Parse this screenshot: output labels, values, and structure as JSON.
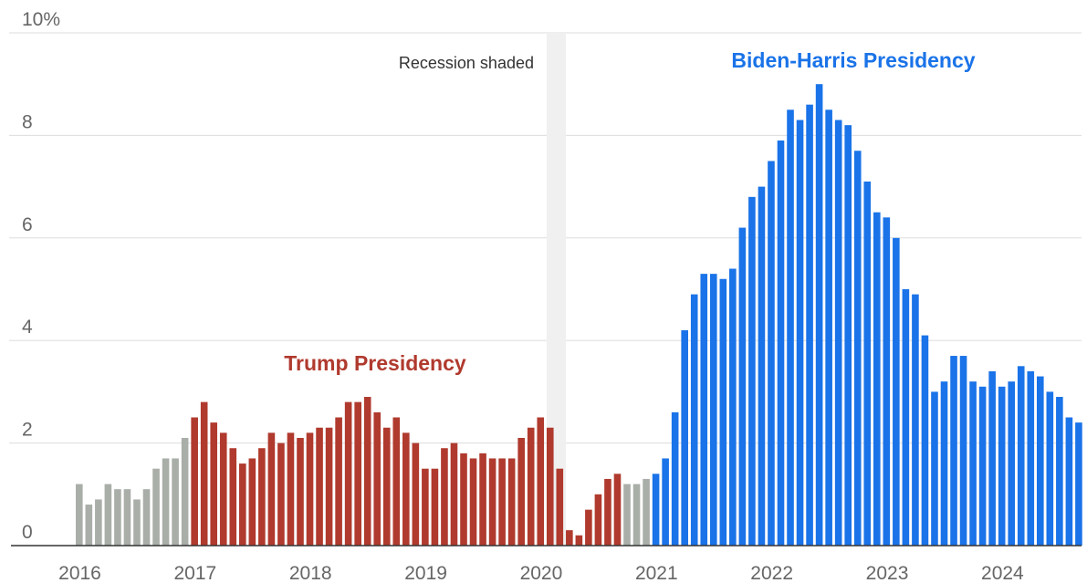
{
  "chart_data": {
    "type": "bar",
    "xlabel": "",
    "ylabel": "",
    "ylim": [
      0,
      10
    ],
    "grid": true,
    "y_ticks": [
      "10%",
      "8",
      "6",
      "4",
      "2",
      "0"
    ],
    "x_ticks": [
      "2016",
      "2017",
      "2018",
      "2019",
      "2020",
      "2021",
      "2022",
      "2023",
      "2024"
    ],
    "x_start": "2016-01",
    "x_end": "2024-09",
    "recession": {
      "label": "Recession shaded",
      "start": "2020-03",
      "end": "2020-04",
      "color": "#f0f0f0"
    },
    "annotations": [
      {
        "text": "Trump Presidency",
        "color": "#b03a2e"
      },
      {
        "text": "Biden-Harris Presidency",
        "color": "#1a73e8"
      }
    ],
    "series": [
      {
        "color": "#a9aea8",
        "start": "2016-01",
        "values": [
          1.2,
          0.8,
          0.9,
          1.2,
          1.1,
          1.1,
          0.9,
          1.1,
          1.5,
          1.7,
          1.7,
          2.1
        ]
      },
      {
        "color": "#b03a2e",
        "start": "2017-01",
        "values": [
          2.5,
          2.8,
          2.4,
          2.2,
          1.9,
          1.6,
          1.7,
          1.9,
          2.2,
          2.0,
          2.2,
          2.1,
          2.2,
          2.3,
          2.3,
          2.5,
          2.8,
          2.8,
          2.9,
          2.6,
          2.3,
          2.5,
          2.2,
          2.0,
          1.5,
          1.5,
          1.9,
          2.0,
          1.8,
          1.7,
          1.8,
          1.7,
          1.7,
          1.7,
          2.1,
          2.3,
          2.5,
          2.3,
          1.5,
          0.3,
          0.2,
          0.7,
          1.0,
          1.3,
          1.4
        ]
      },
      {
        "color": "#a9aea8",
        "start": "2020-10",
        "values": [
          1.2,
          1.2,
          1.3
        ]
      },
      {
        "color": "#1a73e8",
        "start": "2021-01",
        "values": [
          1.4,
          1.7,
          2.6,
          4.2,
          4.9,
          5.3,
          5.3,
          5.2,
          5.4,
          6.2,
          6.8,
          7.0,
          7.5,
          7.9,
          8.5,
          8.3,
          8.6,
          9.0,
          8.5,
          8.3,
          8.2,
          7.7,
          7.1,
          6.5,
          6.4,
          6.0,
          5.0,
          4.9,
          4.1,
          3.0,
          3.2,
          3.7,
          3.7,
          3.2,
          3.1,
          3.4,
          3.1,
          3.2,
          3.5,
          3.4,
          3.3,
          3.0,
          2.9,
          2.5,
          2.4
        ]
      }
    ]
  }
}
